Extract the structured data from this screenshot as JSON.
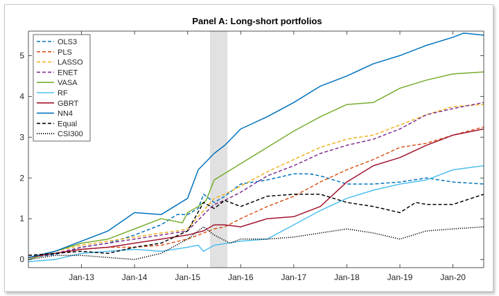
{
  "chart_data": {
    "type": "line",
    "title": "Panel A: Long-short portfolios",
    "xlabel": "",
    "ylabel": "",
    "xlim": [
      2012.0,
      2020.58
    ],
    "ylim": [
      -0.2,
      5.6
    ],
    "x_ticks": [
      {
        "label": "Jan-13",
        "value": 2013.0
      },
      {
        "label": "Jan-14",
        "value": 2014.0
      },
      {
        "label": "Jan-15",
        "value": 2015.0
      },
      {
        "label": "Jan-16",
        "value": 2016.0
      },
      {
        "label": "Jan-17",
        "value": 2017.0
      },
      {
        "label": "Jan-18",
        "value": 2018.0
      },
      {
        "label": "Jan-19",
        "value": 2019.0
      },
      {
        "label": "Jan-20",
        "value": 2020.0
      }
    ],
    "y_ticks": [
      0,
      1,
      2,
      3,
      4,
      5
    ],
    "shaded_region": [
      2015.42,
      2015.75
    ],
    "legend_position": "top-left",
    "series": [
      {
        "name": "OLS3",
        "color": "#0072BD",
        "dash": "dashed",
        "points": [
          [
            2012.0,
            0.05
          ],
          [
            2012.5,
            0.12
          ],
          [
            2013.0,
            0.3
          ],
          [
            2013.5,
            0.4
          ],
          [
            2014.0,
            0.6
          ],
          [
            2014.5,
            0.85
          ],
          [
            2014.8,
            1.1
          ],
          [
            2015.0,
            1.1
          ],
          [
            2015.2,
            1.25
          ],
          [
            2015.3,
            1.6
          ],
          [
            2015.5,
            1.4
          ],
          [
            2015.7,
            1.55
          ],
          [
            2016.0,
            1.85
          ],
          [
            2016.5,
            1.95
          ],
          [
            2017.0,
            2.1
          ],
          [
            2017.3,
            2.1
          ],
          [
            2017.5,
            2.05
          ],
          [
            2018.0,
            1.85
          ],
          [
            2018.5,
            1.85
          ],
          [
            2019.0,
            1.9
          ],
          [
            2019.5,
            2.0
          ],
          [
            2020.0,
            1.9
          ],
          [
            2020.58,
            1.85
          ]
        ]
      },
      {
        "name": "PLS",
        "color": "#D95319",
        "dash": "dashed",
        "points": [
          [
            2012.0,
            0.1
          ],
          [
            2012.5,
            0.15
          ],
          [
            2013.0,
            0.25
          ],
          [
            2013.5,
            0.3
          ],
          [
            2014.0,
            0.3
          ],
          [
            2014.5,
            0.35
          ],
          [
            2015.0,
            0.5
          ],
          [
            2015.3,
            0.65
          ],
          [
            2015.5,
            0.75
          ],
          [
            2015.7,
            0.8
          ],
          [
            2016.0,
            1.0
          ],
          [
            2016.5,
            1.3
          ],
          [
            2017.0,
            1.55
          ],
          [
            2017.5,
            1.9
          ],
          [
            2018.0,
            2.2
          ],
          [
            2018.5,
            2.45
          ],
          [
            2019.0,
            2.75
          ],
          [
            2019.5,
            2.85
          ],
          [
            2020.0,
            3.05
          ],
          [
            2020.58,
            3.25
          ]
        ]
      },
      {
        "name": "LASSO",
        "color": "#EDB120",
        "dash": "dashed",
        "points": [
          [
            2012.0,
            0.05
          ],
          [
            2012.5,
            0.2
          ],
          [
            2013.0,
            0.35
          ],
          [
            2013.5,
            0.45
          ],
          [
            2014.0,
            0.55
          ],
          [
            2014.5,
            0.65
          ],
          [
            2014.8,
            0.7
          ],
          [
            2015.0,
            0.75
          ],
          [
            2015.3,
            1.2
          ],
          [
            2015.5,
            1.5
          ],
          [
            2015.7,
            1.6
          ],
          [
            2016.0,
            1.8
          ],
          [
            2016.5,
            2.15
          ],
          [
            2017.0,
            2.45
          ],
          [
            2017.5,
            2.75
          ],
          [
            2018.0,
            2.95
          ],
          [
            2018.5,
            3.05
          ],
          [
            2019.0,
            3.3
          ],
          [
            2019.5,
            3.55
          ],
          [
            2020.0,
            3.75
          ],
          [
            2020.58,
            3.8
          ]
        ]
      },
      {
        "name": "ENET",
        "color": "#7E2F8E",
        "dash": "dashed",
        "points": [
          [
            2012.0,
            0.05
          ],
          [
            2012.5,
            0.15
          ],
          [
            2013.0,
            0.3
          ],
          [
            2013.5,
            0.4
          ],
          [
            2014.0,
            0.5
          ],
          [
            2014.5,
            0.6
          ],
          [
            2015.0,
            0.7
          ],
          [
            2015.3,
            1.1
          ],
          [
            2015.5,
            1.35
          ],
          [
            2015.7,
            1.45
          ],
          [
            2016.0,
            1.65
          ],
          [
            2016.5,
            2.05
          ],
          [
            2017.0,
            2.3
          ],
          [
            2017.5,
            2.6
          ],
          [
            2018.0,
            2.8
          ],
          [
            2018.5,
            2.95
          ],
          [
            2019.0,
            3.2
          ],
          [
            2019.5,
            3.55
          ],
          [
            2020.0,
            3.7
          ],
          [
            2020.58,
            3.85
          ]
        ]
      },
      {
        "name": "VASA",
        "color": "#77AC30",
        "dash": "solid",
        "points": [
          [
            2012.0,
            0.0
          ],
          [
            2012.5,
            0.2
          ],
          [
            2013.0,
            0.4
          ],
          [
            2013.5,
            0.5
          ],
          [
            2014.0,
            0.75
          ],
          [
            2014.5,
            1.0
          ],
          [
            2014.9,
            0.9
          ],
          [
            2015.0,
            1.15
          ],
          [
            2015.2,
            1.3
          ],
          [
            2015.35,
            1.45
          ],
          [
            2015.5,
            1.95
          ],
          [
            2016.0,
            2.35
          ],
          [
            2016.5,
            2.75
          ],
          [
            2017.0,
            3.15
          ],
          [
            2017.5,
            3.5
          ],
          [
            2018.0,
            3.8
          ],
          [
            2018.5,
            3.85
          ],
          [
            2019.0,
            4.2
          ],
          [
            2019.5,
            4.4
          ],
          [
            2020.0,
            4.55
          ],
          [
            2020.58,
            4.6
          ]
        ]
      },
      {
        "name": "RF",
        "color": "#4DBEEE",
        "dash": "solid",
        "points": [
          [
            2012.0,
            -0.05
          ],
          [
            2012.5,
            0.0
          ],
          [
            2013.0,
            0.15
          ],
          [
            2013.5,
            0.2
          ],
          [
            2014.0,
            0.25
          ],
          [
            2014.5,
            0.2
          ],
          [
            2015.0,
            0.3
          ],
          [
            2015.2,
            0.35
          ],
          [
            2015.3,
            0.2
          ],
          [
            2015.5,
            0.35
          ],
          [
            2016.0,
            0.45
          ],
          [
            2016.5,
            0.5
          ],
          [
            2017.0,
            0.85
          ],
          [
            2017.5,
            1.2
          ],
          [
            2018.0,
            1.5
          ],
          [
            2018.5,
            1.7
          ],
          [
            2019.0,
            1.85
          ],
          [
            2019.5,
            1.95
          ],
          [
            2020.0,
            2.2
          ],
          [
            2020.58,
            2.3
          ]
        ]
      },
      {
        "name": "GBRT",
        "color": "#A2142F",
        "dash": "solid",
        "points": [
          [
            2012.0,
            0.05
          ],
          [
            2012.5,
            0.15
          ],
          [
            2013.0,
            0.25
          ],
          [
            2013.5,
            0.3
          ],
          [
            2014.0,
            0.4
          ],
          [
            2014.5,
            0.5
          ],
          [
            2015.0,
            0.6
          ],
          [
            2015.3,
            0.7
          ],
          [
            2015.5,
            0.85
          ],
          [
            2015.7,
            0.85
          ],
          [
            2016.0,
            0.8
          ],
          [
            2016.5,
            1.0
          ],
          [
            2017.0,
            1.05
          ],
          [
            2017.5,
            1.3
          ],
          [
            2018.0,
            1.9
          ],
          [
            2018.5,
            2.3
          ],
          [
            2019.0,
            2.5
          ],
          [
            2019.5,
            2.8
          ],
          [
            2020.0,
            3.05
          ],
          [
            2020.58,
            3.2
          ]
        ]
      },
      {
        "name": "NN4",
        "color": "#0072BD",
        "dash": "solid",
        "points": [
          [
            2012.0,
            0.05
          ],
          [
            2012.5,
            0.2
          ],
          [
            2013.0,
            0.45
          ],
          [
            2013.5,
            0.7
          ],
          [
            2014.0,
            1.15
          ],
          [
            2014.5,
            1.1
          ],
          [
            2015.0,
            1.5
          ],
          [
            2015.2,
            2.2
          ],
          [
            2015.5,
            2.6
          ],
          [
            2015.7,
            2.8
          ],
          [
            2016.0,
            3.2
          ],
          [
            2016.5,
            3.5
          ],
          [
            2017.0,
            3.85
          ],
          [
            2017.5,
            4.25
          ],
          [
            2018.0,
            4.5
          ],
          [
            2018.5,
            4.8
          ],
          [
            2019.0,
            5.0
          ],
          [
            2019.5,
            5.25
          ],
          [
            2020.0,
            5.45
          ],
          [
            2020.2,
            5.55
          ],
          [
            2020.58,
            5.5
          ]
        ]
      },
      {
        "name": "Equal",
        "color": "#000000",
        "dash": "dashed",
        "points": [
          [
            2012.0,
            0.1
          ],
          [
            2012.5,
            0.15
          ],
          [
            2013.0,
            0.2
          ],
          [
            2013.5,
            0.15
          ],
          [
            2014.0,
            0.3
          ],
          [
            2014.5,
            0.4
          ],
          [
            2015.0,
            0.7
          ],
          [
            2015.3,
            1.4
          ],
          [
            2015.5,
            1.25
          ],
          [
            2015.7,
            1.45
          ],
          [
            2016.0,
            1.3
          ],
          [
            2016.5,
            1.55
          ],
          [
            2017.0,
            1.6
          ],
          [
            2017.5,
            1.6
          ],
          [
            2018.0,
            1.4
          ],
          [
            2018.5,
            1.3
          ],
          [
            2019.0,
            1.15
          ],
          [
            2019.3,
            1.4
          ],
          [
            2019.5,
            1.35
          ],
          [
            2020.0,
            1.35
          ],
          [
            2020.58,
            1.6
          ]
        ]
      },
      {
        "name": "CSI300",
        "color": "#000000",
        "dash": "dotted",
        "points": [
          [
            2012.0,
            0.0
          ],
          [
            2012.5,
            0.1
          ],
          [
            2013.0,
            0.1
          ],
          [
            2013.5,
            0.05
          ],
          [
            2014.0,
            0.0
          ],
          [
            2014.5,
            0.15
          ],
          [
            2015.0,
            0.5
          ],
          [
            2015.3,
            0.8
          ],
          [
            2015.5,
            0.6
          ],
          [
            2015.8,
            0.4
          ],
          [
            2016.0,
            0.5
          ],
          [
            2016.5,
            0.5
          ],
          [
            2017.0,
            0.55
          ],
          [
            2017.5,
            0.65
          ],
          [
            2018.0,
            0.75
          ],
          [
            2018.5,
            0.65
          ],
          [
            2019.0,
            0.5
          ],
          [
            2019.5,
            0.7
          ],
          [
            2020.0,
            0.75
          ],
          [
            2020.58,
            0.8
          ]
        ]
      }
    ]
  }
}
